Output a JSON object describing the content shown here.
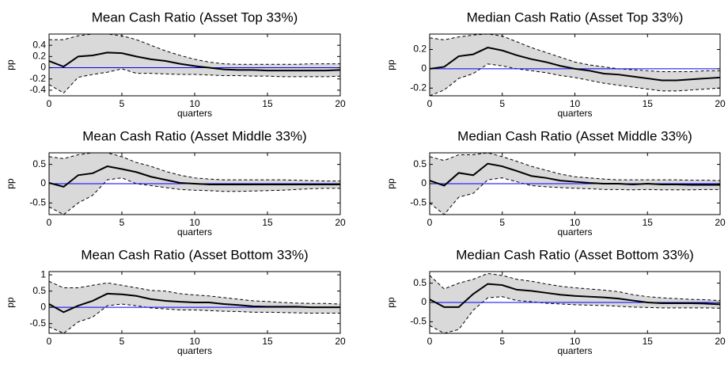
{
  "chart_data": [
    {
      "type": "line",
      "title": "Mean Cash Ratio (Asset Top 33%)",
      "xlabel": "quarters",
      "ylabel": "pp",
      "x": [
        0,
        1,
        2,
        3,
        4,
        5,
        6,
        7,
        8,
        9,
        10,
        11,
        12,
        13,
        14,
        15,
        16,
        17,
        18,
        19,
        20
      ],
      "xlim": [
        0,
        20
      ],
      "xticks": [
        0,
        5,
        10,
        15,
        20
      ],
      "ylim": [
        -0.5,
        0.6
      ],
      "yticks": [
        -0.4,
        -0.2,
        0,
        0.2,
        0.4
      ],
      "zero_line_color": "#0000ff",
      "series": [
        {
          "color": "#000000",
          "values": [
            0.12,
            0.02,
            0.2,
            0.22,
            0.27,
            0.26,
            0.2,
            0.15,
            0.12,
            0.07,
            0.03,
            0.0,
            -0.03,
            -0.04,
            -0.04,
            -0.05,
            -0.05,
            -0.05,
            -0.05,
            -0.05,
            -0.04
          ]
        }
      ],
      "band": {
        "color": "#d9d9d9",
        "line_color": "#000000",
        "upper": [
          0.5,
          0.5,
          0.57,
          0.6,
          0.6,
          0.57,
          0.5,
          0.4,
          0.3,
          0.22,
          0.15,
          0.1,
          0.07,
          0.06,
          0.06,
          0.06,
          0.06,
          0.06,
          0.07,
          0.07,
          0.07
        ],
        "lower": [
          -0.3,
          -0.45,
          -0.17,
          -0.12,
          -0.08,
          -0.02,
          -0.1,
          -0.1,
          -0.11,
          -0.12,
          -0.12,
          -0.13,
          -0.14,
          -0.14,
          -0.15,
          -0.15,
          -0.16,
          -0.16,
          -0.16,
          -0.16,
          -0.15
        ]
      }
    },
    {
      "type": "line",
      "title": "Median Cash Ratio (Asset Top 33%)",
      "xlabel": "quarters",
      "ylabel": "pp",
      "x": [
        0,
        1,
        2,
        3,
        4,
        5,
        6,
        7,
        8,
        9,
        10,
        11,
        12,
        13,
        14,
        15,
        16,
        17,
        18,
        19,
        20
      ],
      "xlim": [
        0,
        20
      ],
      "xticks": [
        0,
        5,
        10,
        15,
        20
      ],
      "ylim": [
        -0.28,
        0.36
      ],
      "yticks": [
        -0.2,
        0,
        0.2
      ],
      "zero_line_color": "#0000ff",
      "series": [
        {
          "color": "#000000",
          "values": [
            0.0,
            0.02,
            0.13,
            0.15,
            0.22,
            0.19,
            0.14,
            0.1,
            0.07,
            0.03,
            0.0,
            -0.02,
            -0.05,
            -0.06,
            -0.08,
            -0.1,
            -0.12,
            -0.12,
            -0.11,
            -0.1,
            -0.09
          ]
        }
      ],
      "band": {
        "color": "#d9d9d9",
        "line_color": "#000000",
        "upper": [
          0.32,
          0.3,
          0.33,
          0.35,
          0.36,
          0.34,
          0.28,
          0.22,
          0.17,
          0.12,
          0.07,
          0.04,
          0.02,
          0.0,
          -0.01,
          -0.02,
          -0.03,
          -0.03,
          -0.03,
          -0.02,
          -0.02
        ],
        "lower": [
          -0.28,
          -0.22,
          -0.1,
          -0.05,
          0.05,
          0.03,
          0.0,
          -0.02,
          -0.04,
          -0.07,
          -0.09,
          -0.12,
          -0.15,
          -0.17,
          -0.19,
          -0.21,
          -0.23,
          -0.23,
          -0.22,
          -0.21,
          -0.2
        ]
      }
    },
    {
      "type": "line",
      "title": "Mean Cash Ratio (Asset Middle 33%)",
      "xlabel": "quarters",
      "ylabel": "pp",
      "x": [
        0,
        1,
        2,
        3,
        4,
        5,
        6,
        7,
        8,
        9,
        10,
        11,
        12,
        13,
        14,
        15,
        16,
        17,
        18,
        19,
        20
      ],
      "xlim": [
        0,
        20
      ],
      "xticks": [
        0,
        5,
        10,
        15,
        20
      ],
      "ylim": [
        -0.8,
        0.8
      ],
      "yticks": [
        -0.5,
        0,
        0.5
      ],
      "zero_line_color": "#0000ff",
      "series": [
        {
          "color": "#000000",
          "values": [
            0.02,
            -0.08,
            0.22,
            0.27,
            0.45,
            0.38,
            0.3,
            0.18,
            0.1,
            0.02,
            0.0,
            -0.02,
            -0.02,
            -0.02,
            -0.02,
            -0.02,
            -0.02,
            -0.02,
            -0.02,
            -0.02,
            -0.02
          ]
        }
      ],
      "band": {
        "color": "#d9d9d9",
        "line_color": "#000000",
        "upper": [
          0.7,
          0.65,
          0.75,
          0.8,
          0.8,
          0.7,
          0.55,
          0.45,
          0.32,
          0.22,
          0.15,
          0.12,
          0.1,
          0.1,
          0.1,
          0.1,
          0.1,
          0.09,
          0.08,
          0.07,
          0.07
        ],
        "lower": [
          -0.6,
          -0.8,
          -0.5,
          -0.3,
          0.1,
          0.15,
          0.0,
          -0.05,
          -0.1,
          -0.15,
          -0.17,
          -0.18,
          -0.2,
          -0.2,
          -0.19,
          -0.18,
          -0.17,
          -0.15,
          -0.13,
          -0.12,
          -0.12
        ]
      }
    },
    {
      "type": "line",
      "title": "Median Cash Ratio (Asset Middle 33%)",
      "xlabel": "quarters",
      "ylabel": "pp",
      "x": [
        0,
        1,
        2,
        3,
        4,
        5,
        6,
        7,
        8,
        9,
        10,
        11,
        12,
        13,
        14,
        15,
        16,
        17,
        18,
        19,
        20
      ],
      "xlim": [
        0,
        20
      ],
      "xticks": [
        0,
        5,
        10,
        15,
        20
      ],
      "ylim": [
        -0.8,
        0.8
      ],
      "yticks": [
        -0.5,
        0,
        0.5
      ],
      "zero_line_color": "#0000ff",
      "series": [
        {
          "color": "#000000",
          "values": [
            0.08,
            -0.05,
            0.28,
            0.22,
            0.52,
            0.45,
            0.33,
            0.2,
            0.15,
            0.08,
            0.05,
            0.02,
            0.0,
            0.0,
            -0.02,
            0.0,
            -0.02,
            -0.02,
            -0.03,
            -0.03,
            -0.03
          ]
        }
      ],
      "band": {
        "color": "#d9d9d9",
        "line_color": "#000000",
        "upper": [
          0.7,
          0.6,
          0.75,
          0.75,
          0.8,
          0.7,
          0.58,
          0.45,
          0.35,
          0.25,
          0.18,
          0.15,
          0.12,
          0.1,
          0.1,
          0.1,
          0.1,
          0.1,
          0.09,
          0.09,
          0.08
        ],
        "lower": [
          -0.5,
          -0.8,
          -0.35,
          -0.25,
          0.1,
          0.15,
          0.05,
          -0.05,
          -0.08,
          -0.1,
          -0.12,
          -0.13,
          -0.15,
          -0.15,
          -0.16,
          -0.15,
          -0.16,
          -0.16,
          -0.16,
          -0.15,
          -0.15
        ]
      }
    },
    {
      "type": "line",
      "title": "Mean Cash Ratio (Asset Bottom 33%)",
      "xlabel": "quarters",
      "ylabel": "pp",
      "x": [
        0,
        1,
        2,
        3,
        4,
        5,
        6,
        7,
        8,
        9,
        10,
        11,
        12,
        13,
        14,
        15,
        16,
        17,
        18,
        19,
        20
      ],
      "xlim": [
        0,
        20
      ],
      "xticks": [
        0,
        5,
        10,
        15,
        20
      ],
      "ylim": [
        -0.8,
        1.1
      ],
      "yticks": [
        -0.5,
        0,
        0.5,
        1
      ],
      "zero_line_color": "#0000ff",
      "series": [
        {
          "color": "#000000",
          "values": [
            0.1,
            -0.15,
            0.05,
            0.2,
            0.42,
            0.4,
            0.35,
            0.25,
            0.2,
            0.17,
            0.15,
            0.15,
            0.1,
            0.07,
            0.03,
            0.02,
            0.02,
            0.02,
            0.0,
            0.0,
            0.0
          ]
        }
      ],
      "band": {
        "color": "#d9d9d9",
        "line_color": "#000000",
        "upper": [
          0.8,
          0.6,
          0.6,
          0.68,
          0.75,
          0.68,
          0.6,
          0.52,
          0.5,
          0.42,
          0.38,
          0.35,
          0.3,
          0.25,
          0.2,
          0.18,
          0.15,
          0.13,
          0.12,
          0.12,
          0.1
        ],
        "lower": [
          -0.6,
          -0.8,
          -0.45,
          -0.3,
          0.05,
          0.1,
          0.05,
          -0.02,
          -0.05,
          -0.08,
          -0.08,
          -0.1,
          -0.12,
          -0.13,
          -0.15,
          -0.15,
          -0.16,
          -0.17,
          -0.18,
          -0.18,
          -0.18
        ]
      }
    },
    {
      "type": "line",
      "title": "Median Cash Ratio (Asset Bottom 33%)",
      "xlabel": "quarters",
      "ylabel": "pp",
      "x": [
        0,
        1,
        2,
        3,
        4,
        5,
        6,
        7,
        8,
        9,
        10,
        11,
        12,
        13,
        14,
        15,
        16,
        17,
        18,
        19,
        20
      ],
      "xlim": [
        0,
        20
      ],
      "xticks": [
        0,
        5,
        10,
        15,
        20
      ],
      "ylim": [
        -0.8,
        0.8
      ],
      "yticks": [
        -0.5,
        0,
        0.5
      ],
      "zero_line_color": "#0000ff",
      "series": [
        {
          "color": "#000000",
          "values": [
            0.08,
            -0.12,
            -0.12,
            0.22,
            0.48,
            0.45,
            0.33,
            0.3,
            0.25,
            0.2,
            0.17,
            0.15,
            0.13,
            0.1,
            0.05,
            0.0,
            -0.02,
            -0.02,
            -0.02,
            -0.03,
            -0.05
          ]
        }
      ],
      "band": {
        "color": "#d9d9d9",
        "line_color": "#000000",
        "upper": [
          0.7,
          0.35,
          0.5,
          0.6,
          0.75,
          0.7,
          0.6,
          0.55,
          0.48,
          0.42,
          0.38,
          0.35,
          0.32,
          0.28,
          0.2,
          0.15,
          0.12,
          0.1,
          0.08,
          0.07,
          0.05
        ],
        "lower": [
          -0.6,
          -0.8,
          -0.7,
          -0.2,
          0.12,
          0.15,
          0.05,
          0.02,
          -0.02,
          -0.04,
          -0.06,
          -0.07,
          -0.08,
          -0.1,
          -0.12,
          -0.13,
          -0.14,
          -0.14,
          -0.14,
          -0.14,
          -0.15
        ]
      }
    }
  ]
}
